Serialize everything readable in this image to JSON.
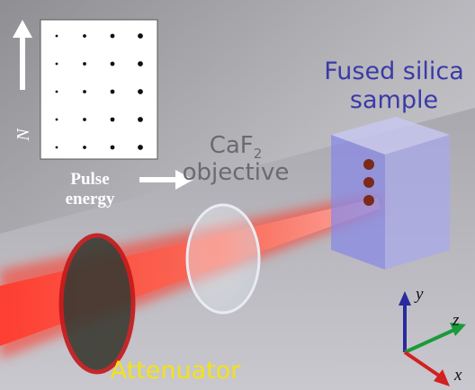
{
  "inset": {
    "y_label": "N",
    "x_label_lines": [
      "Pulse",
      "energy"
    ]
  },
  "labels": {
    "objective": {
      "text": "CaF",
      "subscript": "2",
      "line2": "objective"
    },
    "sample": [
      "Fused silica",
      "sample"
    ],
    "attenuator": "Attenuator"
  },
  "axes": {
    "y": "y",
    "z": "z",
    "x": "x"
  }
}
